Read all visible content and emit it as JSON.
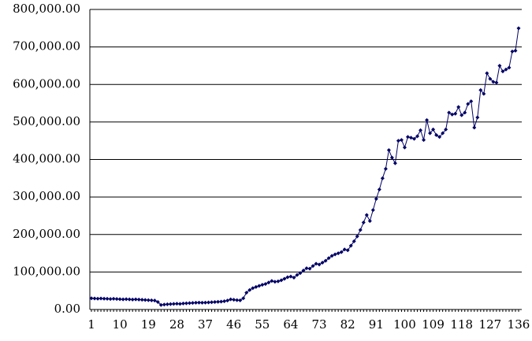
{
  "chart_data": {
    "type": "line",
    "categories": [
      "1",
      null,
      null,
      null,
      null,
      null,
      null,
      null,
      null,
      "10",
      null,
      null,
      null,
      null,
      null,
      null,
      null,
      null,
      "19",
      null,
      null,
      null,
      null,
      null,
      null,
      null,
      null,
      "28",
      null,
      null,
      null,
      null,
      null,
      null,
      null,
      null,
      "37",
      null,
      null,
      null,
      null,
      null,
      null,
      null,
      null,
      "46",
      null,
      null,
      null,
      null,
      null,
      null,
      null,
      null,
      "55",
      null,
      null,
      null,
      null,
      null,
      null,
      null,
      null,
      "64",
      null,
      null,
      null,
      null,
      null,
      null,
      null,
      null,
      "73",
      null,
      null,
      null,
      null,
      null,
      null,
      null,
      null,
      "82",
      null,
      null,
      null,
      null,
      null,
      null,
      null,
      null,
      "91",
      null,
      null,
      null,
      null,
      null,
      null,
      null,
      null,
      "100",
      null,
      null,
      null,
      null,
      null,
      null,
      null,
      null,
      "109",
      null,
      null,
      null,
      null,
      null,
      null,
      null,
      null,
      "118",
      null,
      null,
      null,
      null,
      null,
      null,
      null,
      null,
      "127",
      null,
      null,
      null,
      null,
      null,
      null,
      null,
      null,
      "136"
    ],
    "series": [
      {
        "color": "#000066",
        "values": [
          30000,
          29500,
          29000,
          29500,
          29000,
          28500,
          28000,
          28500,
          28000,
          27500,
          27000,
          27500,
          27000,
          26500,
          27000,
          26500,
          26000,
          25500,
          25000,
          24500,
          24000,
          20000,
          12000,
          13000,
          14000,
          14500,
          15000,
          15500,
          15000,
          16000,
          16500,
          17000,
          17500,
          18000,
          18500,
          18000,
          18500,
          19000,
          19500,
          20000,
          20500,
          21000,
          22000,
          24000,
          27000,
          26000,
          25000,
          24500,
          30000,
          45000,
          52000,
          57000,
          60000,
          63000,
          66000,
          68000,
          72000,
          76000,
          74000,
          75000,
          78000,
          82000,
          86000,
          88000,
          85000,
          92000,
          97000,
          104000,
          110000,
          109000,
          116000,
          122000,
          120000,
          125000,
          130000,
          137000,
          143000,
          147000,
          150000,
          153000,
          160000,
          158000,
          170000,
          182000,
          195000,
          212000,
          232000,
          252000,
          236000,
          265000,
          295000,
          320000,
          350000,
          375000,
          425000,
          405000,
          390000,
          450000,
          452000,
          432000,
          460000,
          458000,
          455000,
          462000,
          478000,
          452000,
          505000,
          470000,
          480000,
          465000,
          460000,
          470000,
          480000,
          525000,
          520000,
          522000,
          540000,
          518000,
          525000,
          548000,
          555000,
          485000,
          512000,
          585000,
          575000,
          630000,
          615000,
          607000,
          605000,
          650000,
          635000,
          640000,
          645000,
          688000,
          690000,
          750000
        ]
      }
    ],
    "ylim": [
      0,
      800000
    ],
    "yticks": [
      {
        "value": 0,
        "label": "0.00"
      },
      {
        "value": 100000,
        "label": "100,000.00"
      },
      {
        "value": 200000,
        "label": "200,000.00"
      },
      {
        "value": 300000,
        "label": "300,000.00"
      },
      {
        "value": 400000,
        "label": "400,000.00"
      },
      {
        "value": 500000,
        "label": "500,000.00"
      },
      {
        "value": 600000,
        "label": "600,000.00"
      },
      {
        "value": 700000,
        "label": "700,000.00"
      },
      {
        "value": 800000,
        "label": "800,000.00"
      }
    ],
    "grid": true
  }
}
